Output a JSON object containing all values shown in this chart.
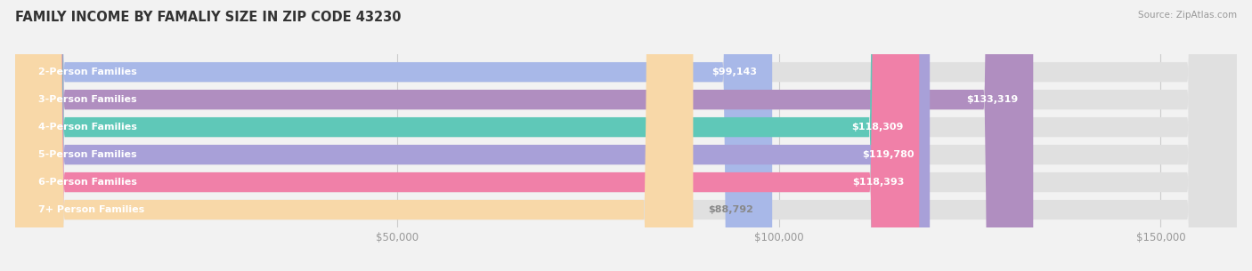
{
  "title": "FAMILY INCOME BY FAMALIY SIZE IN ZIP CODE 43230",
  "source": "Source: ZipAtlas.com",
  "categories": [
    "2-Person Families",
    "3-Person Families",
    "4-Person Families",
    "5-Person Families",
    "6-Person Families",
    "7+ Person Families"
  ],
  "values": [
    99143,
    133319,
    118309,
    119780,
    118393,
    88792
  ],
  "labels": [
    "$99,143",
    "$133,319",
    "$118,309",
    "$119,780",
    "$118,393",
    "$88,792"
  ],
  "bar_colors": [
    "#a8b8e8",
    "#b08ec0",
    "#5fc8b8",
    "#a8a0d8",
    "#f080a8",
    "#f8d8a8"
  ],
  "label_colors": [
    "#888888",
    "#ffffff",
    "#ffffff",
    "#ffffff",
    "#ffffff",
    "#888888"
  ],
  "background_color": "#f2f2f2",
  "bar_bg_color": "#e0e0e0",
  "xlim": [
    0,
    160000
  ],
  "xticks": [
    50000,
    100000,
    150000
  ],
  "xtick_labels": [
    "$50,000",
    "$100,000",
    "$150,000"
  ],
  "title_fontsize": 10.5,
  "label_fontsize": 8.0,
  "tick_fontsize": 8.5,
  "bar_height": 0.72,
  "bar_gap": 0.28
}
